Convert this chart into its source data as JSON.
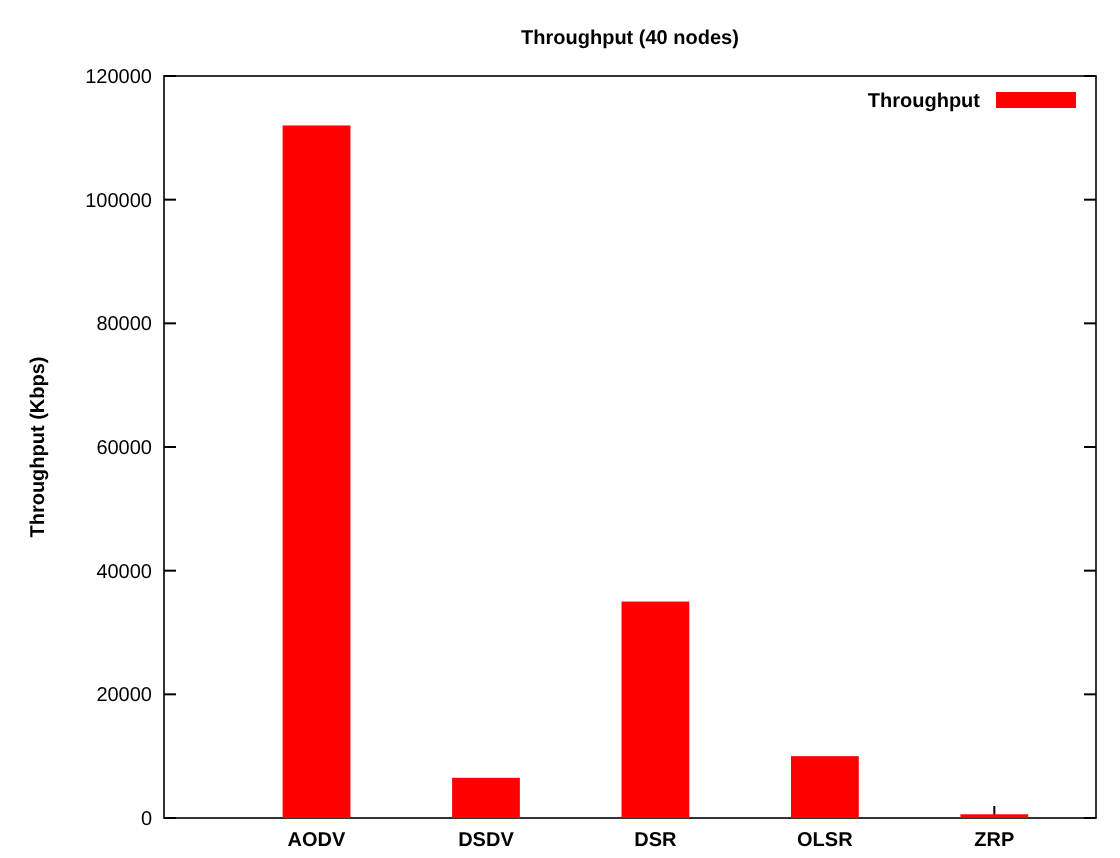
{
  "chart_data": {
    "type": "bar",
    "title": "Throughput (40 nodes)",
    "ylabel": "Throughput (Kbps)",
    "categories": [
      "AODV",
      "DSDV",
      "DSR",
      "OLSR",
      "ZRP"
    ],
    "series": [
      {
        "name": "Throughput",
        "color": "#ff0000",
        "values": [
          112000,
          6500,
          35000,
          10000,
          600
        ]
      }
    ],
    "ylim": [
      0,
      120000
    ],
    "yticks": [
      0,
      20000,
      40000,
      60000,
      80000,
      100000,
      120000
    ],
    "grid": false,
    "legend": "top right"
  }
}
